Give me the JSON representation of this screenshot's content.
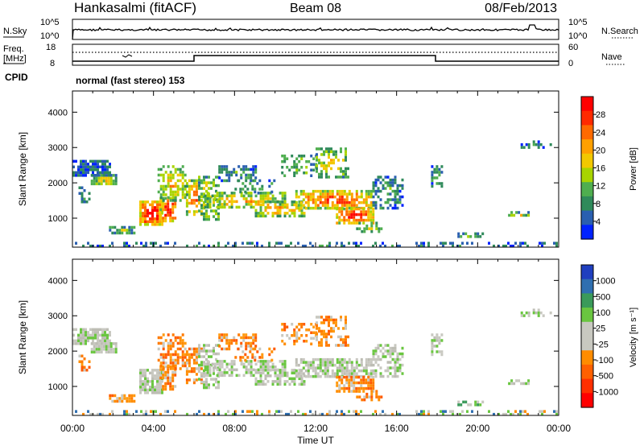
{
  "header": {
    "station": "Hankasalmi (fitACF)",
    "beam": "Beam 08",
    "date": "08/Feb/2013"
  },
  "noise_panel": {
    "left_label": "N.Sky",
    "right_label": "N.Search",
    "left_ticks": [
      "10^5",
      "10^0"
    ],
    "right_ticks": [
      "10^5",
      "10^0"
    ]
  },
  "freq_panel": {
    "left_label_line1": "Freq.",
    "left_label_line2": "[MHz]",
    "right_label": "Nave",
    "left_ticks": [
      "18",
      "8"
    ],
    "right_ticks": [
      "60",
      "0"
    ]
  },
  "cpid": {
    "label": "CPID",
    "mode": "normal (fast stereo) 153"
  },
  "chart_data": [
    {
      "type": "heatmap",
      "title": "",
      "xlabel": "",
      "ylabel": "Slant Range [km]",
      "ylim": [
        180,
        4600
      ],
      "y_ticks": [
        "4000",
        "3000",
        "2000",
        "1000"
      ],
      "colorbar_label": "Power [dB]",
      "colorbar_ticks": [
        "28",
        "24",
        "20",
        "16",
        "12",
        "8",
        "4"
      ],
      "colorbar_colors": [
        "#ff0000",
        "#ff2a00",
        "#ff6a00",
        "#ffa000",
        "#f2c800",
        "#a8d400",
        "#4fae4f",
        "#2f8a5a",
        "#2a5fb0",
        "#0022ff"
      ]
    },
    {
      "type": "heatmap",
      "title": "",
      "xlabel": "Time UT",
      "ylabel": "Slant Range [km]",
      "ylim": [
        180,
        4600
      ],
      "x_ticks": [
        "00:00",
        "04:00",
        "08:00",
        "12:00",
        "16:00",
        "20:00",
        "00:00"
      ],
      "y_ticks": [
        "4000",
        "3000",
        "2000",
        "1000"
      ],
      "colorbar_label": "Velocity [m s⁻¹]",
      "colorbar_ticks": [
        "1000",
        "500",
        "100",
        "25",
        "-25",
        "-100",
        "-500",
        "-1000"
      ],
      "colorbar_colors": [
        "#1f3fbf",
        "#2f6fb0",
        "#3a9a5a",
        "#6ac640",
        "#c8c8c0",
        "#c8c8c0",
        "#ff8c00",
        "#ff6000",
        "#ff3000",
        "#ff0000"
      ]
    }
  ]
}
